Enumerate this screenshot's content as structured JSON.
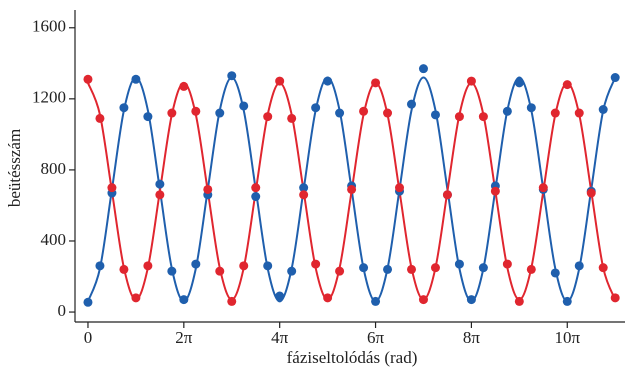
{
  "chart_data": {
    "type": "scatter",
    "x_label": "fáziseltolódás (rad)",
    "y_label": "beütésszám",
    "x": [
      0,
      0.785,
      1.571,
      2.356,
      3.142,
      3.927,
      4.712,
      5.498,
      6.283,
      7.069,
      7.854,
      8.639,
      9.425,
      10.21,
      10.996,
      11.781,
      12.566,
      13.352,
      14.137,
      14.923,
      15.708,
      16.493,
      17.279,
      18.064,
      18.85,
      19.635,
      20.42,
      21.206,
      21.991,
      22.777,
      23.562,
      24.347,
      25.133,
      25.918,
      26.704,
      27.489,
      28.274,
      29.06,
      29.845,
      30.631,
      31.416,
      32.201,
      32.987,
      33.772,
      34.558
    ],
    "series": [
      {
        "color": "#1f5fad",
        "values": [
          55,
          260,
          670,
          1150,
          1310,
          1100,
          720,
          230,
          70,
          270,
          660,
          1120,
          1330,
          1160,
          650,
          260,
          90,
          230,
          700,
          1150,
          1300,
          1120,
          710,
          250,
          60,
          240,
          680,
          1170,
          1370,
          1110,
          660,
          270,
          70,
          250,
          710,
          1130,
          1290,
          1150,
          690,
          220,
          60,
          260,
          680,
          1140,
          1320
        ],
        "fit": [
          60,
          245,
          690,
          1135,
          1320,
          1135,
          690,
          245,
          60,
          245,
          690,
          1135,
          1320,
          1135,
          690,
          245,
          60,
          245,
          690,
          1135,
          1320,
          1135,
          690,
          245,
          60,
          245,
          690,
          1135,
          1320,
          1135,
          690,
          245,
          60,
          245,
          690,
          1135,
          1320,
          1135,
          690,
          245,
          60,
          245,
          690,
          1135,
          1320
        ]
      },
      {
        "color": "#e0262f",
        "values": [
          1310,
          1090,
          700,
          240,
          80,
          260,
          660,
          1120,
          1270,
          1130,
          690,
          230,
          60,
          260,
          700,
          1100,
          1300,
          1090,
          660,
          270,
          80,
          230,
          690,
          1130,
          1290,
          1120,
          700,
          240,
          70,
          250,
          660,
          1100,
          1300,
          1100,
          680,
          270,
          60,
          240,
          700,
          1120,
          1280,
          1120,
          670,
          250,
          80
        ],
        "fit": [
          1290,
          1111,
          680,
          249,
          70,
          249,
          680,
          1111,
          1290,
          1111,
          680,
          249,
          70,
          249,
          680,
          1111,
          1290,
          1111,
          680,
          249,
          70,
          249,
          680,
          1111,
          1290,
          1111,
          680,
          249,
          70,
          249,
          680,
          1111,
          1290,
          1111,
          680,
          249,
          70,
          249,
          680,
          1111,
          1290,
          1111,
          680,
          249,
          70
        ]
      }
    ],
    "xlim": [
      -0.85,
      35.2
    ],
    "ylim": [
      -56,
      1700
    ],
    "xticks": [
      0,
      {
        "value": 6.283,
        "label": "2π"
      },
      {
        "value": 12.566,
        "label": "4π"
      },
      {
        "value": 18.85,
        "label": "6π"
      },
      {
        "value": 25.133,
        "label": "8π"
      },
      {
        "value": 31.416,
        "label": "10π"
      }
    ],
    "yticks": [
      0,
      400,
      800,
      1200,
      1600
    ]
  }
}
